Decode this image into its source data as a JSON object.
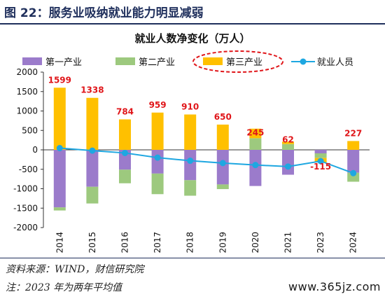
{
  "figure_title": "图 22：服务业吸纳就业能力明显减弱",
  "source_note": "资料来源：WIND，财信研究院",
  "footnote": "注：2023 年为两年平均值",
  "watermark": "www.365jz.com",
  "colors": {
    "primary": "#9b7bcb",
    "secondary": "#9dc97e",
    "tertiary": "#ffc000",
    "total": "#1ea7e1",
    "label": "#e0161a",
    "dash_circle": "#e0161a",
    "title_navy": "#1f2f5c"
  },
  "chart_data": {
    "type": "bar",
    "stacked": true,
    "title": "就业人数净变化（万人）",
    "categories": [
      "2014",
      "2015",
      "2016",
      "2017",
      "2018",
      "2019",
      "2020",
      "2021",
      "2023",
      "2024"
    ],
    "series": [
      {
        "name": "第一产业",
        "kind": "bar",
        "values": [
          -1480,
          -950,
          -510,
          -610,
          -780,
          -890,
          -930,
          -640,
          -90,
          -590
        ]
      },
      {
        "name": "第二产业",
        "kind": "bar",
        "values": [
          -80,
          -430,
          -350,
          -530,
          -400,
          -120,
          300,
          150,
          -120,
          -230
        ]
      },
      {
        "name": "第三产业",
        "kind": "bar",
        "values": [
          1599,
          1338,
          784,
          959,
          910,
          650,
          245,
          62,
          -115,
          227
        ]
      },
      {
        "name": "就业人员",
        "kind": "line",
        "values": [
          45,
          -20,
          -80,
          -200,
          -280,
          -340,
          -390,
          -430,
          -290,
          -600
        ]
      }
    ],
    "data_labels": [
      "1599",
      "1338",
      "784",
      "959",
      "910",
      "650",
      "245",
      "62",
      "-115",
      "227"
    ],
    "ylim": [
      -2000,
      2000
    ],
    "yticks": [
      "2000",
      "1500",
      "1000",
      "500",
      "0",
      "-500",
      "-1000",
      "-1500",
      "-2000"
    ],
    "highlighted_legend": "第三产业",
    "legend_position": "top",
    "grid": false
  }
}
